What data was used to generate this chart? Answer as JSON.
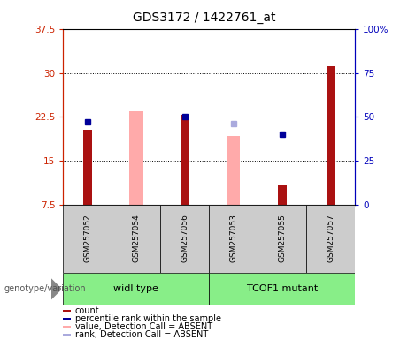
{
  "title": "GDS3172 / 1422761_at",
  "samples": [
    "GSM257052",
    "GSM257054",
    "GSM257056",
    "GSM257053",
    "GSM257055",
    "GSM257057"
  ],
  "groups": [
    {
      "name": "widl type",
      "samples": [
        0,
        1,
        2
      ]
    },
    {
      "name": "TCOF1 mutant",
      "samples": [
        3,
        4,
        5
      ]
    }
  ],
  "ylim_left": [
    7.5,
    37.5
  ],
  "ylim_right": [
    0,
    100
  ],
  "yticks_left": [
    7.5,
    15.0,
    22.5,
    30.0,
    37.5
  ],
  "yticks_right": [
    0,
    25,
    50,
    75,
    100
  ],
  "ytick_labels_left": [
    "7.5",
    "15",
    "22.5",
    "30",
    "37.5"
  ],
  "ytick_labels_right": [
    "0",
    "25",
    "50",
    "75",
    "100%"
  ],
  "hlines": [
    15.0,
    22.5,
    30.0
  ],
  "count_bars": [
    {
      "x": 0,
      "value": 20.3
    },
    {
      "x": 2,
      "value": 22.8
    },
    {
      "x": 4,
      "value": 10.8
    },
    {
      "x": 5,
      "value": 31.2
    }
  ],
  "value_absent_bars": [
    {
      "x": 1,
      "value": 23.5
    },
    {
      "x": 3,
      "value": 19.3
    }
  ],
  "rank_present_markers": [
    {
      "x": 0,
      "rank": 47
    },
    {
      "x": 2,
      "rank": 50
    },
    {
      "x": 4,
      "rank": 40
    }
  ],
  "rank_absent_markers": [
    {
      "x": 3,
      "rank": 46
    }
  ],
  "count_bar_width": 0.18,
  "absent_bar_width": 0.28,
  "colors": {
    "dark_red": "#AA1111",
    "pink": "#FFAAAA",
    "dark_blue": "#000099",
    "light_blue": "#AAAADD",
    "left_axis": "#CC2200",
    "right_axis": "#0000BB",
    "bg_label": "#CCCCCC",
    "green_group": "#88EE88",
    "dotted_line": "#000000"
  },
  "legend_items": [
    {
      "label": "count",
      "color": "#AA1111"
    },
    {
      "label": "percentile rank within the sample",
      "color": "#000099"
    },
    {
      "label": "value, Detection Call = ABSENT",
      "color": "#FFAAAA"
    },
    {
      "label": "rank, Detection Call = ABSENT",
      "color": "#AAAADD"
    }
  ],
  "genotype_label": "genotype/variation"
}
